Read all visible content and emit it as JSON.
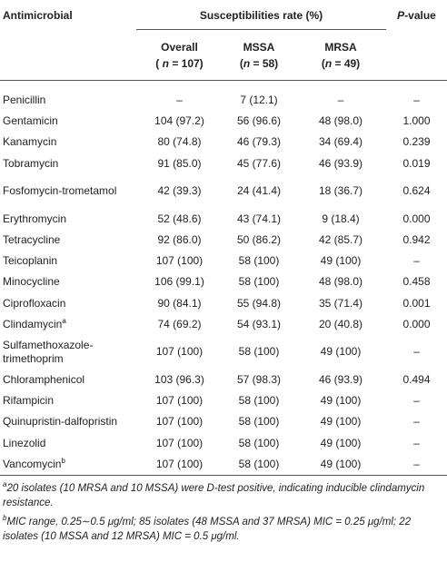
{
  "table": {
    "header": {
      "antimicrobial": "Antimicrobial",
      "group": "Susceptibilities rate (%)",
      "p_value": [
        "P",
        "-value"
      ],
      "columns": [
        {
          "name": "Overall",
          "count": [
            "( ",
            "n",
            " = 107)"
          ]
        },
        {
          "name": "MSSA",
          "count": [
            "(",
            "n",
            " = 58)"
          ]
        },
        {
          "name": "MRSA",
          "count": [
            "(",
            "n",
            " = 49)"
          ]
        }
      ]
    },
    "rows": [
      {
        "cells": [
          "Penicillin",
          "–",
          "7 (12.1)",
          "–",
          "–"
        ]
      },
      {
        "cells": [
          "Gentamicin",
          "104 (97.2)",
          "56 (96.6)",
          "48 (98.0)",
          "1.000"
        ]
      },
      {
        "cells": [
          "Kanamycin",
          "80 (74.8)",
          "46 (79.3)",
          "34 (69.4)",
          "0.239"
        ]
      },
      {
        "cells": [
          "Tobramycin",
          "91 (85.0)",
          "45 (77.6)",
          "46 (93.9)",
          "0.019"
        ]
      },
      {
        "cells": [
          "Fosfomycin-trometamol",
          "42 (39.3)",
          "24 (41.4)",
          "18 (36.7)",
          "0.624"
        ]
      },
      {
        "cells": [
          "Erythromycin",
          "52 (48.6)",
          "43 (74.1)",
          "9 (18.4)",
          "0.000"
        ]
      },
      {
        "cells": [
          "Tetracycline",
          "92 (86.0)",
          "50 (86.2)",
          "42 (85.7)",
          "0.942"
        ]
      },
      {
        "cells": [
          "Teicoplanin",
          "107 (100)",
          "58 (100)",
          "49 (100)",
          "–"
        ]
      },
      {
        "cells": [
          "Minocycline",
          "106 (99.1)",
          "58 (100)",
          "48 (98.0)",
          "0.458"
        ]
      },
      {
        "cells": [
          "Ciprofloxacin",
          "90 (84.1)",
          "55 (94.8)",
          "35 (71.4)",
          "0.001"
        ]
      },
      {
        "cells": [
          "Clindamycin",
          "74 (69.2)",
          "54 (93.1)",
          "20 (40.8)",
          "0.000"
        ],
        "mark": "a"
      },
      {
        "cells": [
          "Sulfamethoxazole-trimethoprim",
          "107 (100)",
          "58 (100)",
          "49 (100)",
          "–"
        ]
      },
      {
        "cells": [
          "Chloramphenicol",
          "103 (96.3)",
          "57 (98.3)",
          "46 (93.9)",
          "0.494"
        ]
      },
      {
        "cells": [
          "Rifampicin",
          "107 (100)",
          "58 (100)",
          "49 (100)",
          "–"
        ]
      },
      {
        "cells": [
          "Quinupristin-dalfopristin",
          "107 (100)",
          "58 (100)",
          "49 (100)",
          "–"
        ]
      },
      {
        "cells": [
          "Linezolid",
          "107 (100)",
          "58 (100)",
          "49 (100)",
          "–"
        ]
      },
      {
        "cells": [
          "Vancomycin",
          "107 (100)",
          "58 (100)",
          "49 (100)",
          "–"
        ],
        "mark": "b"
      }
    ],
    "footnotes": [
      {
        "mark": "a",
        "text": "20 isolates (10 MRSA and 10 MSSA) were D-test positive, indicating inducible clindamycin resistance."
      },
      {
        "mark": "b",
        "text": "MIC range, 0.25∼0.5 μg/ml; 85 isolates (48 MSSA and 37 MRSA) MIC = 0.25 μg/ml; 22 isolates (10 MSSA and 12 MRSA) MIC = 0.5 μg/ml."
      }
    ]
  }
}
